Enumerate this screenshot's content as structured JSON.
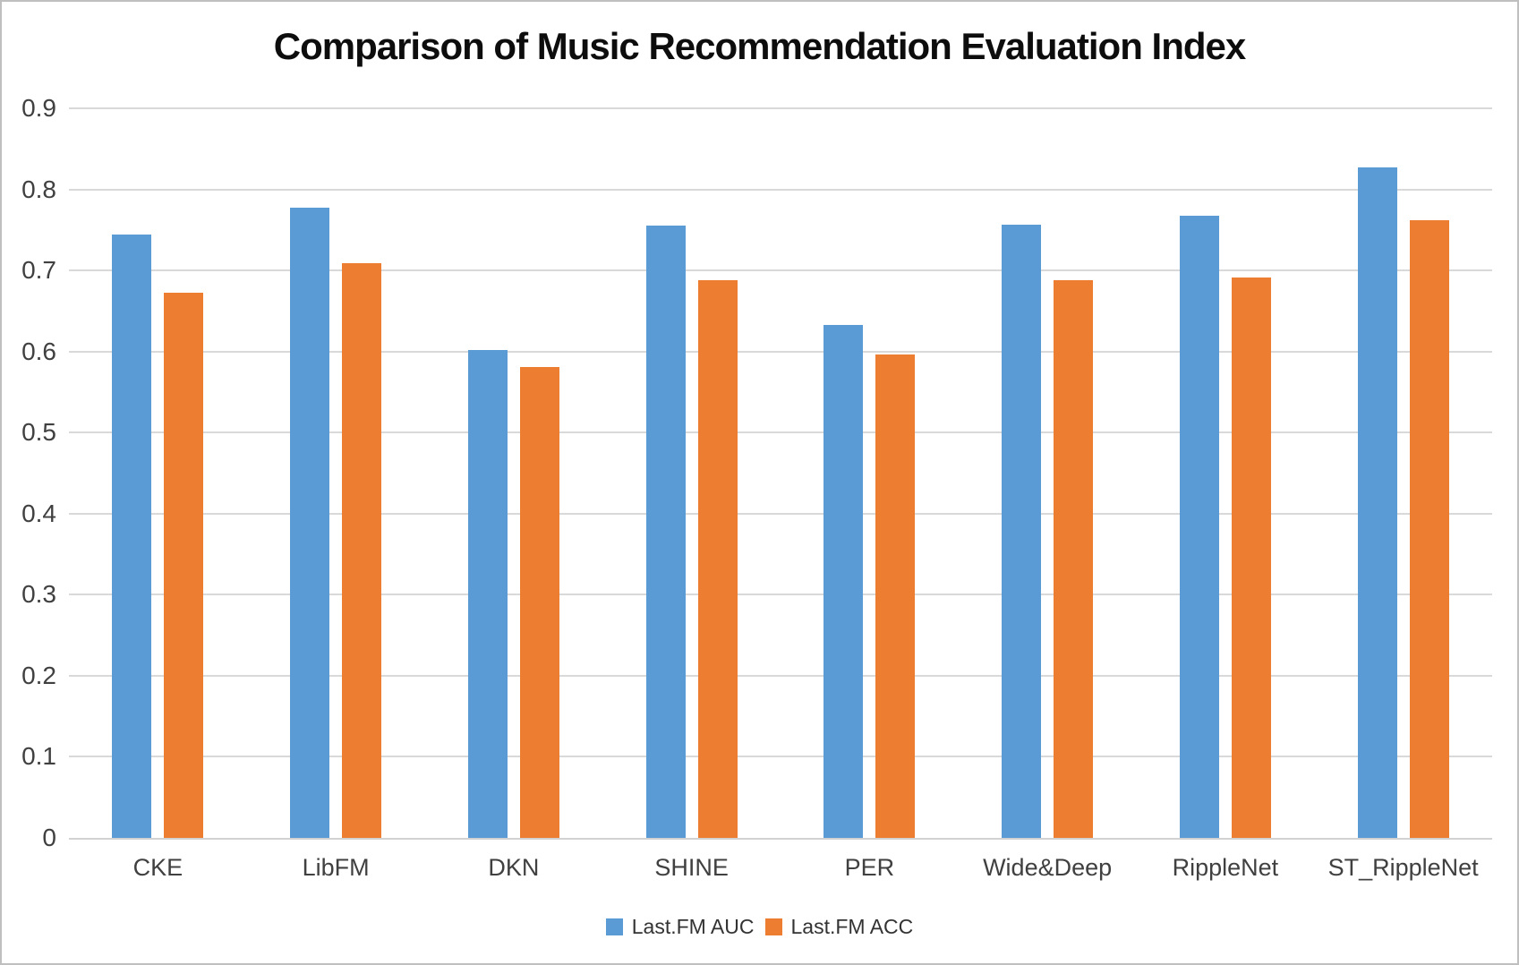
{
  "chart": {
    "title": "Comparison of Music Recommendation Evaluation Index"
  },
  "chart_data": {
    "type": "bar",
    "title": "Comparison of Music Recommendation Evaluation Index",
    "categories": [
      "CKE",
      "LibFM",
      "DKN",
      "SHINE",
      "PER",
      "Wide&Deep",
      "RippleNet",
      "ST_RippleNet"
    ],
    "series": [
      {
        "name": "Last.FM AUC",
        "color": "#5B9BD5",
        "values": [
          0.744,
          0.777,
          0.602,
          0.755,
          0.633,
          0.756,
          0.768,
          0.827
        ]
      },
      {
        "name": "Last.FM ACC",
        "color": "#ED7D31",
        "values": [
          0.673,
          0.709,
          0.581,
          0.688,
          0.596,
          0.688,
          0.691,
          0.762
        ]
      }
    ],
    "xlabel": "",
    "ylabel": "",
    "ylim": [
      0,
      0.9
    ],
    "yticks": [
      "0",
      "0.1",
      "0.2",
      "0.3",
      "0.4",
      "0.5",
      "0.6",
      "0.7",
      "0.8",
      "0.9"
    ],
    "grid": true,
    "legend_position": "bottom"
  },
  "colors": {
    "auc_blue": "#5B9BD5",
    "acc_orange": "#ED7D31",
    "gridline": "#D9D9D9",
    "axis_line": "#D2D2D2",
    "tick_text": "#404040",
    "title_text": "#0D0D0D",
    "frame_border": "#BFBFBF",
    "background": "#FFFFFF"
  }
}
